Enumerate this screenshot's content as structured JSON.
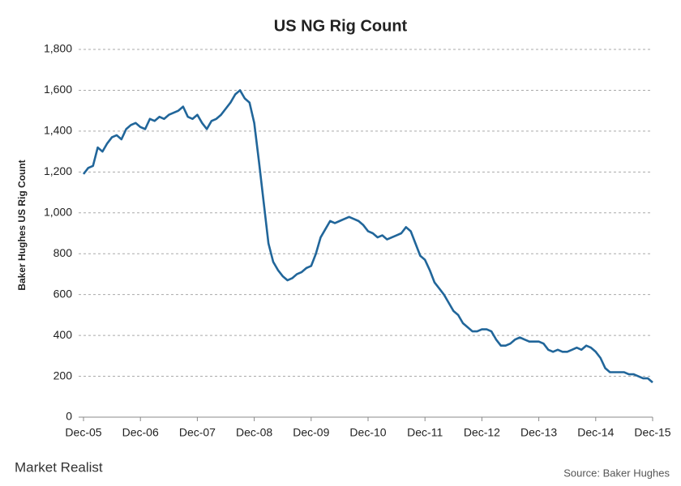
{
  "chart_data": {
    "type": "line",
    "title": "US NG Rig Count",
    "y_label": "Baker Hughes US Rig Count",
    "logo": "Market Realist",
    "source": "Source: Baker Hughes",
    "grid": true,
    "xlim": [
      "2005-12",
      "2015-12"
    ],
    "xticks": [
      {
        "value": "2005-12",
        "label": "Dec-05"
      },
      {
        "value": "2006-12",
        "label": "Dec-06"
      },
      {
        "value": "2007-12",
        "label": "Dec-07"
      },
      {
        "value": "2008-12",
        "label": "Dec-08"
      },
      {
        "value": "2009-12",
        "label": "Dec-09"
      },
      {
        "value": "2010-12",
        "label": "Dec-10"
      },
      {
        "value": "2011-12",
        "label": "Dec-11"
      },
      {
        "value": "2012-12",
        "label": "Dec-12"
      },
      {
        "value": "2013-12",
        "label": "Dec-13"
      },
      {
        "value": "2014-12",
        "label": "Dec-14"
      },
      {
        "value": "2015-12",
        "label": "Dec-15"
      }
    ],
    "ylim": [
      0,
      1800
    ],
    "yticks": [
      0,
      200,
      400,
      600,
      800,
      {
        "value": 1000,
        "label": "1,000"
      },
      {
        "value": 1200,
        "label": "1,200"
      },
      {
        "value": 1400,
        "label": "1,400"
      },
      {
        "value": 1600,
        "label": "1,600"
      },
      {
        "value": 1800,
        "label": "1,800"
      }
    ],
    "x": [
      "2005-12",
      "2006-01",
      "2006-02",
      "2006-03",
      "2006-04",
      "2006-05",
      "2006-06",
      "2006-07",
      "2006-08",
      "2006-09",
      "2006-10",
      "2006-11",
      "2006-12",
      "2007-01",
      "2007-02",
      "2007-03",
      "2007-04",
      "2007-05",
      "2007-06",
      "2007-07",
      "2007-08",
      "2007-09",
      "2007-10",
      "2007-11",
      "2007-12",
      "2008-01",
      "2008-02",
      "2008-03",
      "2008-04",
      "2008-05",
      "2008-06",
      "2008-07",
      "2008-08",
      "2008-09",
      "2008-10",
      "2008-11",
      "2008-12",
      "2009-01",
      "2009-02",
      "2009-03",
      "2009-04",
      "2009-05",
      "2009-06",
      "2009-07",
      "2009-08",
      "2009-09",
      "2009-10",
      "2009-11",
      "2009-12",
      "2010-01",
      "2010-02",
      "2010-03",
      "2010-04",
      "2010-05",
      "2010-06",
      "2010-07",
      "2010-08",
      "2010-09",
      "2010-10",
      "2010-11",
      "2010-12",
      "2011-01",
      "2011-02",
      "2011-03",
      "2011-04",
      "2011-05",
      "2011-06",
      "2011-07",
      "2011-08",
      "2011-09",
      "2011-10",
      "2011-11",
      "2011-12",
      "2012-01",
      "2012-02",
      "2012-03",
      "2012-04",
      "2012-05",
      "2012-06",
      "2012-07",
      "2012-08",
      "2012-09",
      "2012-10",
      "2012-11",
      "2012-12",
      "2013-01",
      "2013-02",
      "2013-03",
      "2013-04",
      "2013-05",
      "2013-06",
      "2013-07",
      "2013-08",
      "2013-09",
      "2013-10",
      "2013-11",
      "2013-12",
      "2014-01",
      "2014-02",
      "2014-03",
      "2014-04",
      "2014-05",
      "2014-06",
      "2014-07",
      "2014-08",
      "2014-09",
      "2014-10",
      "2014-11",
      "2014-12",
      "2015-01",
      "2015-02",
      "2015-03",
      "2015-04",
      "2015-05",
      "2015-06",
      "2015-07",
      "2015-08",
      "2015-09",
      "2015-10",
      "2015-11",
      "2015-12"
    ],
    "series": [
      {
        "color": "#21669a",
        "values": [
          1190,
          1220,
          1230,
          1320,
          1300,
          1340,
          1370,
          1380,
          1360,
          1410,
          1430,
          1440,
          1420,
          1410,
          1460,
          1450,
          1470,
          1460,
          1480,
          1490,
          1500,
          1520,
          1470,
          1460,
          1480,
          1440,
          1410,
          1450,
          1460,
          1480,
          1510,
          1540,
          1580,
          1600,
          1560,
          1540,
          1440,
          1250,
          1050,
          850,
          760,
          720,
          690,
          670,
          680,
          700,
          710,
          730,
          740,
          800,
          880,
          920,
          960,
          950,
          960,
          970,
          980,
          970,
          960,
          940,
          910,
          900,
          880,
          890,
          870,
          880,
          890,
          900,
          930,
          910,
          850,
          790,
          770,
          720,
          660,
          630,
          600,
          560,
          520,
          500,
          460,
          440,
          420,
          420,
          430,
          430,
          420,
          380,
          350,
          350,
          360,
          380,
          390,
          380,
          370,
          370,
          370,
          360,
          330,
          320,
          330,
          320,
          320,
          330,
          340,
          330,
          350,
          340,
          320,
          290,
          240,
          220,
          220,
          220,
          220,
          210,
          210,
          200,
          190,
          190,
          170
        ]
      }
    ]
  }
}
